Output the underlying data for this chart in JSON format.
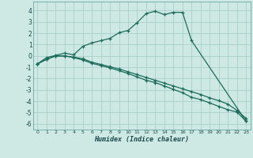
{
  "xlabel": "Humidex (Indice chaleur)",
  "background_color": "#cee8e4",
  "grid_color": "#aacfcb",
  "line_color": "#1a6b5a",
  "ylim": [
    -6.5,
    4.8
  ],
  "xlim": [
    -0.5,
    23.5
  ],
  "yticks": [
    -6,
    -5,
    -4,
    -3,
    -2,
    -1,
    0,
    1,
    2,
    3,
    4
  ],
  "xticks": [
    0,
    1,
    2,
    3,
    4,
    5,
    6,
    7,
    8,
    9,
    10,
    11,
    12,
    13,
    14,
    15,
    16,
    17,
    18,
    19,
    20,
    21,
    22,
    23
  ],
  "line1_x": [
    0,
    1,
    2,
    3,
    4,
    5,
    6,
    7,
    8,
    9,
    10,
    11,
    12,
    13,
    14,
    15,
    16,
    17,
    23
  ],
  "line1_y": [
    -0.7,
    -0.15,
    0.05,
    0.25,
    0.1,
    0.85,
    1.15,
    1.35,
    1.55,
    2.05,
    2.25,
    2.95,
    3.75,
    3.95,
    3.65,
    3.85,
    3.85,
    1.35,
    -5.75
  ],
  "line2_x": [
    0,
    1,
    2,
    3,
    4,
    5,
    6,
    7,
    8,
    9,
    10,
    11,
    12,
    13,
    14,
    15,
    16,
    17,
    18,
    19,
    20,
    21,
    22,
    23
  ],
  "line2_y": [
    -0.7,
    -0.3,
    0.0,
    0.0,
    -0.1,
    -0.25,
    -0.55,
    -0.75,
    -0.95,
    -1.15,
    -1.4,
    -1.65,
    -1.9,
    -2.15,
    -2.4,
    -2.65,
    -2.9,
    -3.15,
    -3.4,
    -3.7,
    -3.95,
    -4.25,
    -4.8,
    -5.5
  ],
  "line3_x": [
    0,
    1,
    2,
    3,
    4,
    5,
    6,
    7,
    8,
    9,
    10,
    11,
    12,
    13,
    14,
    15,
    16,
    17,
    18,
    19,
    20,
    21,
    22,
    23
  ],
  "line3_y": [
    -0.7,
    -0.3,
    0.0,
    0.0,
    -0.15,
    -0.35,
    -0.65,
    -0.85,
    -1.05,
    -1.3,
    -1.55,
    -1.85,
    -2.15,
    -2.35,
    -2.65,
    -2.95,
    -3.25,
    -3.65,
    -3.85,
    -4.15,
    -4.45,
    -4.75,
    -4.95,
    -5.75
  ]
}
